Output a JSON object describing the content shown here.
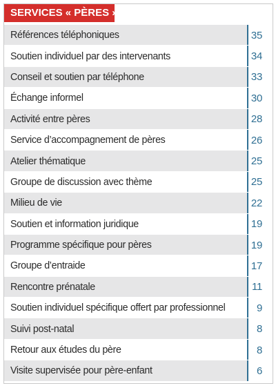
{
  "chart_data": {
    "type": "table",
    "title": "SERVICES « PÈRES »",
    "categories": [
      "Références téléphoniques",
      "Soutien individuel par des intervenants",
      "Conseil et soutien par téléphone",
      "Échange informel",
      "Activité entre pères",
      "Service d’accompagnement de pères",
      "Atelier thématique",
      "Groupe de discussion avec thème",
      "Milieu de vie",
      "Soutien et information juridique",
      "Programme spécifique pour pères",
      "Groupe d’entraide",
      "Rencontre prénatale",
      "Soutien individuel spécifique offert par professionnel",
      "Suivi post-natal",
      "Retour aux études du père",
      "Visite supervisée pour père-enfant"
    ],
    "values": [
      35,
      34,
      33,
      30,
      28,
      26,
      25,
      25,
      22,
      19,
      19,
      17,
      11,
      9,
      8,
      8,
      6
    ]
  },
  "colors": {
    "header_bg": "#d42e2b",
    "header_text": "#ffffff",
    "row_shade": "#e6e6e7",
    "value_text": "#2f6f93",
    "value_border": "#2f6f93"
  }
}
